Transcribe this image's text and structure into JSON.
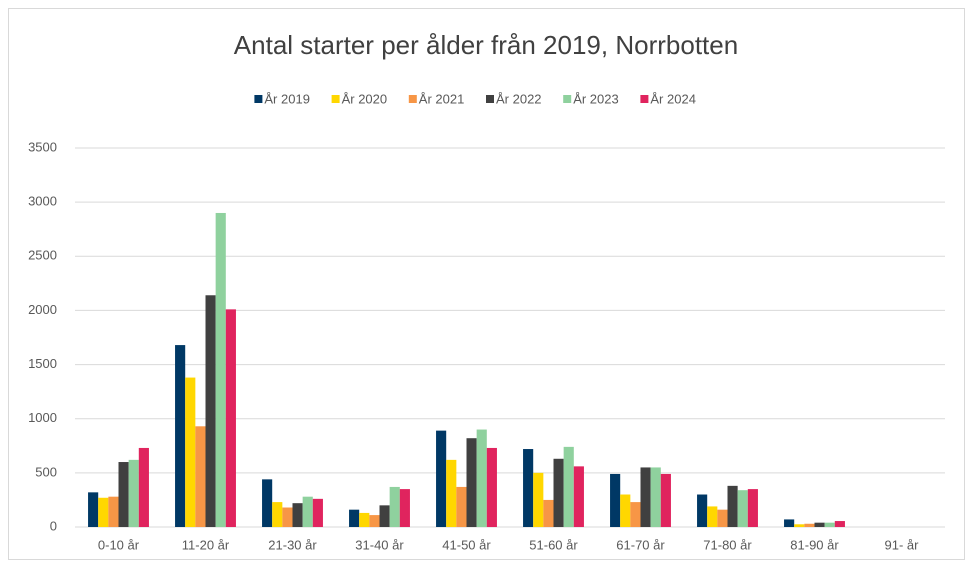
{
  "chart_data": {
    "type": "bar",
    "title": "Antal starter per ålder från 2019, Norrbotten",
    "categories": [
      "0-10 år",
      "11-20 år",
      "21-30 år",
      "31-40 år",
      "41-50 år",
      "51-60 år",
      "61-70 år",
      "71-80 år",
      "81-90 år",
      "91- år"
    ],
    "series": [
      {
        "name": "År 2019",
        "color": "#003865",
        "values": [
          320,
          1680,
          440,
          160,
          890,
          720,
          490,
          300,
          70,
          0
        ]
      },
      {
        "name": "År 2020",
        "color": "#ffd700",
        "values": [
          270,
          1380,
          230,
          130,
          620,
          500,
          300,
          190,
          25,
          0
        ]
      },
      {
        "name": "År 2021",
        "color": "#f79646",
        "values": [
          280,
          930,
          180,
          110,
          370,
          250,
          230,
          160,
          30,
          0
        ]
      },
      {
        "name": "År 2022",
        "color": "#404040",
        "values": [
          600,
          2140,
          220,
          200,
          820,
          630,
          550,
          380,
          40,
          0
        ]
      },
      {
        "name": "År 2023",
        "color": "#8fd19e",
        "values": [
          620,
          2900,
          280,
          370,
          900,
          740,
          550,
          340,
          40,
          0
        ]
      },
      {
        "name": "År 2024",
        "color": "#e0245e",
        "values": [
          730,
          2010,
          260,
          350,
          730,
          560,
          490,
          350,
          55,
          0
        ]
      }
    ],
    "ylim": [
      0,
      3500
    ],
    "yticks": [
      0,
      500,
      1000,
      1500,
      2000,
      2500,
      3000,
      3500
    ],
    "grid": true,
    "legend": "top"
  }
}
